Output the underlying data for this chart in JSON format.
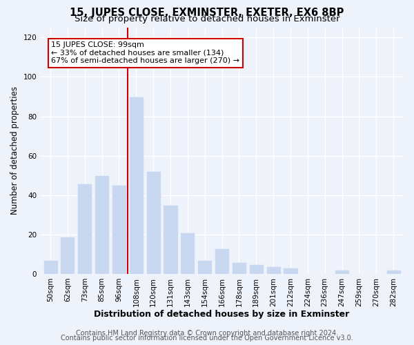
{
  "title": "15, JUPES CLOSE, EXMINSTER, EXETER, EX6 8BP",
  "subtitle": "Size of property relative to detached houses in Exminster",
  "xlabel": "Distribution of detached houses by size in Exminster",
  "ylabel": "Number of detached properties",
  "bar_labels": [
    "50sqm",
    "62sqm",
    "73sqm",
    "85sqm",
    "96sqm",
    "108sqm",
    "120sqm",
    "131sqm",
    "143sqm",
    "154sqm",
    "166sqm",
    "178sqm",
    "189sqm",
    "201sqm",
    "212sqm",
    "224sqm",
    "236sqm",
    "247sqm",
    "259sqm",
    "270sqm",
    "282sqm"
  ],
  "bar_values": [
    7,
    19,
    46,
    50,
    45,
    90,
    52,
    35,
    21,
    7,
    13,
    6,
    5,
    4,
    3,
    0,
    0,
    2,
    0,
    0,
    2
  ],
  "bar_color": "#c8d8f0",
  "vline_index": 4,
  "vline_color": "#cc0000",
  "annotation_line1": "15 JUPES CLOSE: 99sqm",
  "annotation_line2": "← 33% of detached houses are smaller (134)",
  "annotation_line3": "67% of semi-detached houses are larger (270) →",
  "annotation_box_edge_color": "#cc0000",
  "annotation_box_facecolor": "#ffffff",
  "ylim": [
    0,
    125
  ],
  "yticks": [
    0,
    20,
    40,
    60,
    80,
    100,
    120
  ],
  "footer_line1": "Contains HM Land Registry data © Crown copyright and database right 2024.",
  "footer_line2": "Contains public sector information licensed under the Open Government Licence v3.0.",
  "background_color": "#eef2fb",
  "grid_color": "#ffffff",
  "title_fontsize": 10.5,
  "subtitle_fontsize": 9.5,
  "xlabel_fontsize": 9,
  "ylabel_fontsize": 8.5,
  "footer_fontsize": 7,
  "tick_fontsize": 7.5,
  "annot_fontsize": 8
}
